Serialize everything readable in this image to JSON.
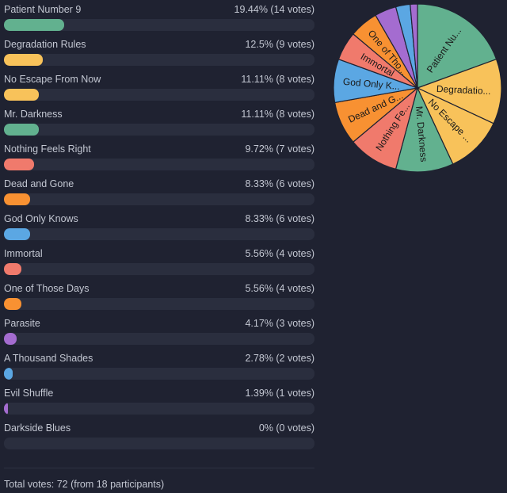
{
  "chart_data": {
    "type": "bar",
    "categories": [
      "Patient Number 9",
      "Degradation Rules",
      "No Escape From Now",
      "Mr. Darkness",
      "Nothing Feels Right",
      "Dead and Gone",
      "God Only Knows",
      "Immortal",
      "One of Those Days",
      "Parasite",
      "A Thousand Shades",
      "Evil Shuffle",
      "Darkside Blues"
    ],
    "values": [
      14,
      9,
      8,
      8,
      7,
      6,
      6,
      4,
      4,
      3,
      2,
      1,
      0
    ],
    "stats": [
      "19.44% (14 votes)",
      "12.5% (9 votes)",
      "11.11% (8 votes)",
      "11.11% (8 votes)",
      "9.72% (7 votes)",
      "8.33% (6 votes)",
      "8.33% (6 votes)",
      "5.56% (4 votes)",
      "5.56% (4 votes)",
      "4.17% (3 votes)",
      "2.78% (2 votes)",
      "1.39% (1 votes)",
      "0% (0 votes)"
    ],
    "percentages": [
      19.44,
      12.5,
      11.11,
      11.11,
      9.72,
      8.33,
      8.33,
      5.56,
      5.56,
      4.17,
      2.78,
      1.39,
      0
    ],
    "colors": [
      "#62b18f",
      "#f8c25a",
      "#f8c25a",
      "#62b18f",
      "#f07a6c",
      "#f89132",
      "#5ba7e3",
      "#f07a6c",
      "#f89132",
      "#a46cd0",
      "#5ba7e3",
      "#a46cd0",
      "#a46cd0"
    ],
    "pie_labels": [
      "Patient Nu...",
      "Degradatio...",
      "No Escape ...",
      "Mr. Darkness",
      "Nothing Fe...",
      "Dead and G...",
      "God Only K...",
      "Immortal",
      "One of Tho...",
      "",
      "",
      "",
      ""
    ],
    "ylim": [
      0,
      72
    ]
  },
  "footer": {
    "total": "Total votes: 72 (from 18 participants)"
  }
}
